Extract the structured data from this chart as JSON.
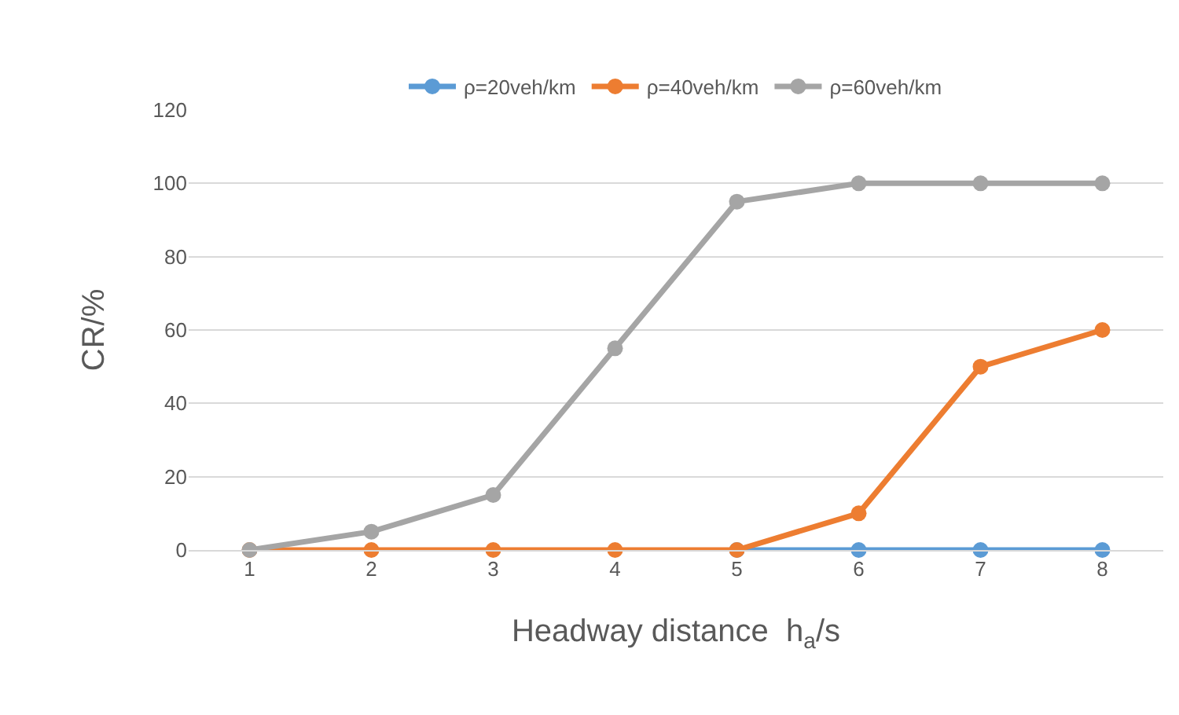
{
  "chart_data": {
    "type": "line",
    "categories": [
      "1",
      "2",
      "3",
      "4",
      "5",
      "6",
      "7",
      "8"
    ],
    "series": [
      {
        "name": "ρ=20veh/km",
        "color": "#5b9bd5",
        "values": [
          null,
          null,
          null,
          null,
          0,
          0,
          0,
          0
        ]
      },
      {
        "name": "ρ=40veh/km",
        "color": "#ed7d31",
        "values": [
          0,
          0,
          0,
          0,
          0,
          10,
          50,
          60
        ]
      },
      {
        "name": "ρ=60veh/km",
        "color": "#a5a5a5",
        "values": [
          0,
          5,
          15,
          55,
          95,
          100,
          100,
          100
        ]
      }
    ],
    "xlabel": "Headway distance  h$_{a}$/s",
    "ylabel": "CR/%",
    "ylim": [
      0,
      120
    ],
    "yticks": [
      0,
      20,
      40,
      60,
      80,
      100,
      120
    ],
    "grid": "y",
    "legend": "top",
    "marker": "circle",
    "line_style": "solid"
  }
}
